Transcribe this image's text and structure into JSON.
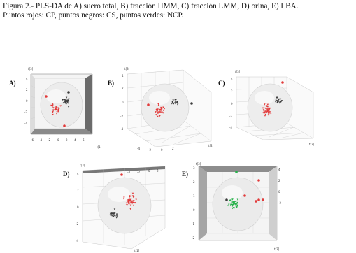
{
  "caption": {
    "line1": "Figura 2.- PLS-DA de A) suero total, B) fracción HMM, C) fracción LMM, D) orina, E) LBA.",
    "line2": "Puntos rojos: CP, puntos negros: CS, puntos verdes: NCP."
  },
  "panels": [
    {
      "id": "A",
      "label": "A)",
      "axis_top": "t[3]",
      "axis_right": "t[1]",
      "style": "dark"
    },
    {
      "id": "B",
      "label": "B)",
      "axis_top": "t[3]",
      "axis_right": "t[2]",
      "style": "light"
    },
    {
      "id": "C",
      "label": "C)",
      "axis_top": "t[3]",
      "axis_right": "t[2]",
      "style": "light"
    },
    {
      "id": "D",
      "label": "D)",
      "axis_top": "t[3]",
      "axis_right": "t[1]",
      "style": "light"
    },
    {
      "id": "E",
      "label": "E)",
      "axis_top": "t[3]",
      "axis_right": "t[2]",
      "style": "darkgray"
    }
  ],
  "colors": {
    "cp": "#e23a3a",
    "cs": "#3c3c3c",
    "ncp": "#27b24a",
    "dark_frame": "#6b6b6b",
    "grid": "#b8b8b8"
  }
}
